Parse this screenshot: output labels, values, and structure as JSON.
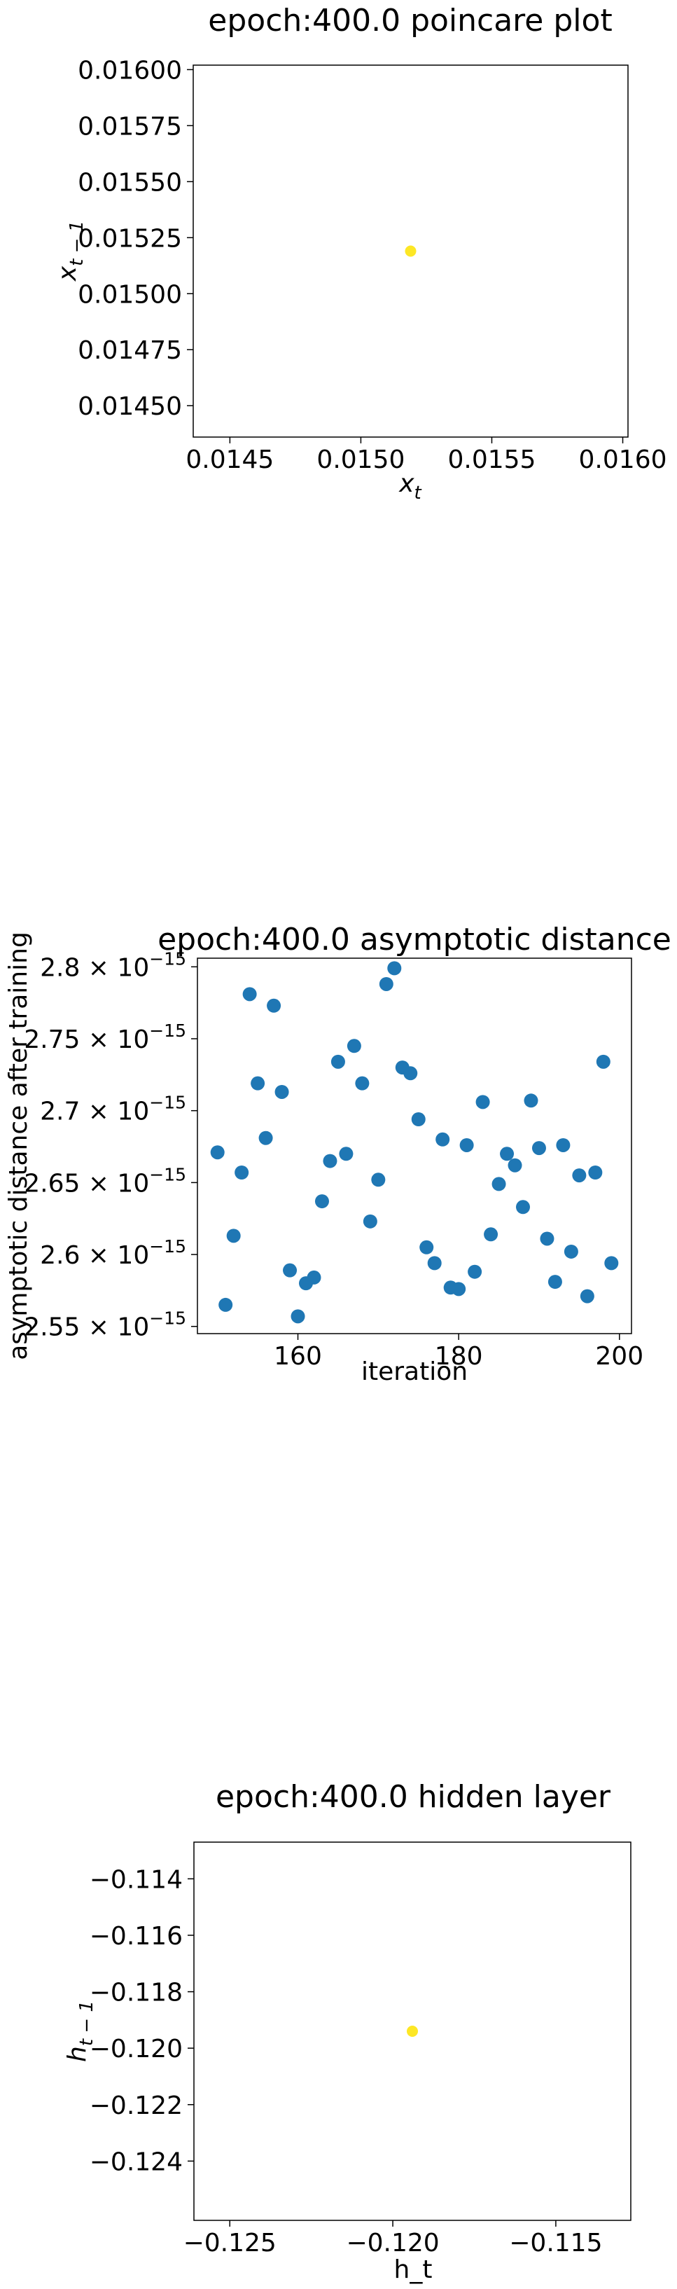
{
  "colors": {
    "yellow_point": "#fde725",
    "blue_point": "#1f77b4",
    "frame": "#000000"
  },
  "chart_data": [
    {
      "type": "scatter",
      "title": "epoch:400.0 poincare plot",
      "xlabel_main": "x",
      "xlabel_sub": "t",
      "ylabel_main": "x",
      "ylabel_sub": "t − 1",
      "xlim": [
        0.01436,
        0.01602
      ],
      "ylim": [
        0.01436,
        0.01602
      ],
      "xticks": [
        0.0145,
        0.015,
        0.0155,
        0.016
      ],
      "xtick_labels": [
        "0.0145",
        "0.0150",
        "0.0155",
        "0.0160"
      ],
      "yticks": [
        0.0145,
        0.01475,
        0.015,
        0.01525,
        0.0155,
        0.01575,
        0.016
      ],
      "ytick_labels": [
        "0.01450",
        "0.01475",
        "0.01500",
        "0.01525",
        "0.01550",
        "0.01575",
        "0.01600"
      ],
      "points": [
        {
          "x": 0.01519,
          "y": 0.01519
        }
      ],
      "point_color": "#fde725"
    },
    {
      "type": "scatter",
      "title": "epoch:400.0 asymptotic distance",
      "xlabel": "iteration",
      "ylabel": "asymptotic distance after training",
      "xlim": [
        147.5,
        201.5
      ],
      "ylim": [
        2.545,
        2.806
      ],
      "xticks": [
        160,
        180,
        200
      ],
      "xtick_labels": [
        "160",
        "180",
        "200"
      ],
      "yticks": [
        2.55,
        2.6,
        2.65,
        2.7,
        2.75,
        2.8
      ],
      "ytick_mantissas": [
        "2.55",
        "2.6",
        "2.65",
        "2.7",
        "2.75",
        "2.8"
      ],
      "ytick_exponent": "−15",
      "x": [
        150,
        151,
        152,
        153,
        154,
        155,
        156,
        157,
        158,
        159,
        160,
        161,
        162,
        163,
        164,
        165,
        166,
        167,
        168,
        169,
        170,
        171,
        172,
        173,
        174,
        175,
        176,
        177,
        178,
        179,
        180,
        181,
        182,
        183,
        184,
        185,
        186,
        187,
        188,
        189,
        190,
        191,
        192,
        193,
        194,
        195,
        196,
        197,
        198,
        199
      ],
      "y": [
        2.671,
        2.565,
        2.613,
        2.657,
        2.781,
        2.719,
        2.681,
        2.773,
        2.713,
        2.589,
        2.557,
        2.58,
        2.584,
        2.637,
        2.665,
        2.734,
        2.67,
        2.745,
        2.719,
        2.623,
        2.652,
        2.788,
        2.799,
        2.73,
        2.726,
        2.694,
        2.605,
        2.594,
        2.68,
        2.577,
        2.576,
        2.676,
        2.588,
        2.706,
        2.614,
        2.649,
        2.67,
        2.662,
        2.633,
        2.707,
        2.674,
        2.611,
        2.581,
        2.676,
        2.602,
        2.655,
        2.571,
        2.657,
        2.734,
        2.594
      ],
      "point_color": "#1f77b4"
    },
    {
      "type": "scatter",
      "title": "epoch:400.0 hidden layer",
      "xlabel": "h_t",
      "ylabel_main": "h",
      "ylabel_sub": "t − 1",
      "xlim": [
        -0.1261,
        -0.1127
      ],
      "ylim": [
        -0.1261,
        -0.1127
      ],
      "xticks": [
        -0.125,
        -0.12,
        -0.115
      ],
      "xtick_labels": [
        "−0.125",
        "−0.120",
        "−0.115"
      ],
      "yticks": [
        -0.124,
        -0.122,
        -0.12,
        -0.118,
        -0.116,
        -0.114
      ],
      "ytick_labels": [
        "−0.124",
        "−0.122",
        "−0.120",
        "−0.118",
        "−0.116",
        "−0.114"
      ],
      "points": [
        {
          "x": -0.1194,
          "y": -0.1194
        }
      ],
      "point_color": "#fde725"
    }
  ]
}
